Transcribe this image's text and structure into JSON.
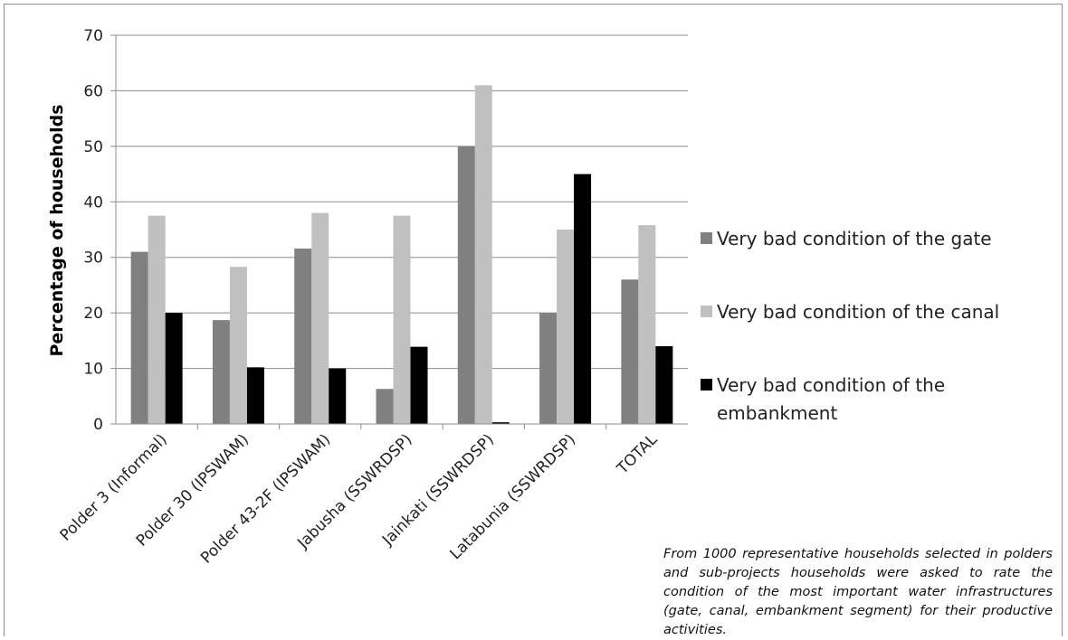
{
  "chart_data": {
    "type": "bar",
    "title": "",
    "xlabel": "",
    "ylabel": "Percentage of households",
    "ylim": [
      0,
      70
    ],
    "yticks": [
      0,
      10,
      20,
      30,
      40,
      50,
      60,
      70
    ],
    "grid": true,
    "legend_position": "right",
    "categories": [
      "Polder 3 (Informal)",
      "Polder 30 (IPSWAM)",
      "Polder 43-2F  (IPSWAM)",
      "Jabusha (SSWRDSP)",
      "Jainkati (SSWRDSP)",
      "Latabunia (SSWRDSP)",
      "TOTAL"
    ],
    "series": [
      {
        "name": "Very bad condition of the gate",
        "color": "#808080",
        "values": [
          31,
          18.7,
          31.6,
          6.3,
          50,
          20,
          26
        ]
      },
      {
        "name": "Very bad condition of the canal",
        "color": "#c0c0c0",
        "values": [
          37.5,
          28.3,
          38,
          37.5,
          61,
          35,
          35.8
        ]
      },
      {
        "name": "Very bad condition of the embankment",
        "color": "#000000",
        "values": [
          20,
          10.2,
          10,
          13.9,
          0.3,
          45,
          14
        ]
      }
    ]
  },
  "legend_lines": [
    [
      "Very bad condition of the gate"
    ],
    [
      "Very bad condition of the canal"
    ],
    [
      "Very bad condition of the",
      "embankment"
    ]
  ],
  "note": "From 1000 representative households selected in polders and sub-projects households were asked to rate the condition of the most important water infrastructures (gate, canal, embankment segment) for their productive activities."
}
